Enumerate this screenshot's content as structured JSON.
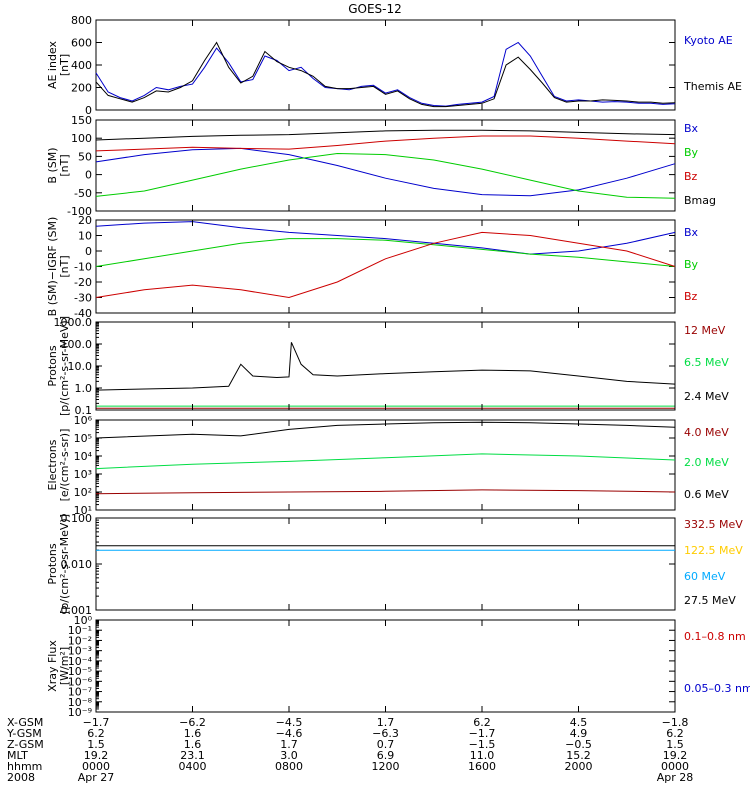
{
  "title": "GOES-12",
  "chart_data": [
    {
      "type": "line",
      "ylabel": [
        "AE index",
        "[nT]"
      ],
      "ylim": [
        0,
        800
      ],
      "yscale": "linear",
      "yticks": [
        0,
        200,
        400,
        600,
        800
      ],
      "series": [
        {
          "name": "Kyoto AE",
          "color": "#0000cc",
          "x": [
            0,
            0.5,
            1,
            1.5,
            2,
            2.5,
            3,
            3.5,
            4,
            4.5,
            5,
            5.5,
            6,
            6.5,
            7,
            7.5,
            8,
            8.5,
            9,
            9.5,
            10,
            10.5,
            11,
            11.5,
            12,
            12.5,
            13,
            13.5,
            14,
            14.5,
            15,
            15.5,
            16,
            16.5,
            17,
            17.5,
            18,
            18.5,
            19,
            19.5,
            20,
            20.5,
            21,
            21.5,
            22,
            22.5,
            23,
            23.5,
            24
          ],
          "values": [
            330,
            160,
            110,
            80,
            130,
            200,
            180,
            210,
            230,
            380,
            550,
            420,
            250,
            270,
            480,
            440,
            350,
            380,
            280,
            200,
            190,
            180,
            210,
            220,
            150,
            180,
            110,
            60,
            40,
            35,
            50,
            60,
            70,
            120,
            540,
            600,
            480,
            300,
            120,
            80,
            90,
            80,
            70,
            75,
            70,
            60,
            60,
            50,
            55
          ]
        },
        {
          "name": "Themis AE",
          "color": "#000000",
          "x": [
            0,
            0.5,
            1,
            1.5,
            2,
            2.5,
            3,
            3.5,
            4,
            4.5,
            5,
            5.5,
            6,
            6.5,
            7,
            7.5,
            8,
            8.5,
            9,
            9.5,
            10,
            10.5,
            11,
            11.5,
            12,
            12.5,
            13,
            13.5,
            14,
            14.5,
            15,
            15.5,
            16,
            16.5,
            17,
            17.5,
            18,
            18.5,
            19,
            19.5,
            20,
            20.5,
            21,
            21.5,
            22,
            22.5,
            23,
            23.5,
            24
          ],
          "values": [
            250,
            130,
            100,
            70,
            110,
            170,
            160,
            200,
            260,
            440,
            600,
            380,
            240,
            300,
            520,
            430,
            380,
            350,
            300,
            210,
            190,
            190,
            200,
            210,
            140,
            170,
            100,
            50,
            30,
            30,
            40,
            50,
            60,
            100,
            400,
            470,
            360,
            240,
            110,
            70,
            80,
            80,
            90,
            85,
            80,
            70,
            70,
            60,
            65
          ]
        }
      ]
    },
    {
      "type": "line",
      "ylabel": [
        "B (SM)",
        "[nT]"
      ],
      "ylim": [
        -100,
        150
      ],
      "yscale": "linear",
      "yticks": [
        -100,
        -50,
        0,
        50,
        100,
        150
      ],
      "series": [
        {
          "name": "Bx",
          "color": "#0000cc",
          "x": [
            0,
            2,
            4,
            6,
            8,
            10,
            12,
            14,
            16,
            18,
            20,
            22,
            24
          ],
          "values": [
            35,
            55,
            68,
            72,
            55,
            25,
            -10,
            -38,
            -55,
            -58,
            -42,
            -10,
            30
          ]
        },
        {
          "name": "By",
          "color": "#00cc00",
          "x": [
            0,
            2,
            4,
            6,
            8,
            10,
            12,
            14,
            16,
            18,
            20,
            22,
            24
          ],
          "values": [
            -60,
            -45,
            -15,
            15,
            40,
            58,
            55,
            40,
            15,
            -15,
            -45,
            -62,
            -65
          ]
        },
        {
          "name": "Bz",
          "color": "#cc0000",
          "x": [
            0,
            2,
            4,
            6,
            8,
            10,
            12,
            14,
            16,
            18,
            20,
            22,
            24
          ],
          "values": [
            65,
            70,
            75,
            72,
            70,
            80,
            92,
            100,
            106,
            106,
            100,
            92,
            85
          ]
        },
        {
          "name": "Bmag",
          "color": "#000000",
          "x": [
            0,
            2,
            4,
            6,
            8,
            10,
            12,
            14,
            16,
            18,
            20,
            22,
            24
          ],
          "values": [
            95,
            100,
            105,
            108,
            110,
            115,
            120,
            122,
            122,
            120,
            116,
            112,
            110
          ]
        }
      ]
    },
    {
      "type": "line",
      "ylabel": [
        "B (SM)−IGRF (SM)",
        "[nT]"
      ],
      "ylim": [
        -40,
        20
      ],
      "yscale": "linear",
      "yticks": [
        -40,
        -30,
        -20,
        -10,
        0,
        10,
        20
      ],
      "series": [
        {
          "name": "Bx",
          "color": "#0000cc",
          "x": [
            0,
            2,
            4,
            6,
            8,
            10,
            12,
            14,
            16,
            18,
            20,
            22,
            24
          ],
          "values": [
            16,
            18,
            19,
            15,
            12,
            10,
            8,
            5,
            2,
            -2,
            0,
            5,
            12
          ]
        },
        {
          "name": "By",
          "color": "#00cc00",
          "x": [
            0,
            2,
            4,
            6,
            8,
            10,
            12,
            14,
            16,
            18,
            20,
            22,
            24
          ],
          "values": [
            -10,
            -5,
            0,
            5,
            8,
            8,
            7,
            4,
            1,
            -2,
            -4,
            -7,
            -10
          ]
        },
        {
          "name": "Bz",
          "color": "#cc0000",
          "x": [
            0,
            2,
            4,
            6,
            8,
            10,
            12,
            14,
            16,
            18,
            20,
            22,
            24
          ],
          "values": [
            -30,
            -25,
            -22,
            -25,
            -30,
            -20,
            -5,
            5,
            12,
            10,
            5,
            0,
            -10
          ]
        }
      ]
    },
    {
      "type": "line",
      "ylabel": [
        "Protons",
        "[p/(cm²-s-sr-MeV)]"
      ],
      "ylim": [
        0.1,
        1000
      ],
      "yscale": "log",
      "ytick_labels": [
        "0.1",
        "1.0",
        "10.0",
        "100.0",
        "1000.0"
      ],
      "series": [
        {
          "name": "12 MeV",
          "color": "#990000",
          "x": [
            0,
            6,
            12,
            18,
            24
          ],
          "values": [
            0.12,
            0.12,
            0.12,
            0.12,
            0.12
          ]
        },
        {
          "name": "6.5 MeV",
          "color": "#00dd44",
          "x": [
            0,
            6,
            12,
            18,
            24
          ],
          "values": [
            0.15,
            0.15,
            0.15,
            0.15,
            0.15
          ]
        },
        {
          "name": "2.4 MeV",
          "color": "#000000",
          "x": [
            0,
            2,
            4,
            5.5,
            6,
            6.5,
            7.5,
            8,
            8.1,
            8.5,
            9,
            10,
            12,
            14,
            16,
            18,
            20,
            22,
            24
          ],
          "values": [
            0.8,
            0.9,
            1.0,
            1.2,
            12,
            3.5,
            3.0,
            3.2,
            120,
            12,
            4,
            3.5,
            4.5,
            5.5,
            6.5,
            6.0,
            3.5,
            2.0,
            1.5
          ]
        }
      ]
    },
    {
      "type": "line",
      "ylabel": [
        "Electrons",
        "[e/(cm²-s-sr)]"
      ],
      "ylim": [
        10,
        1000000
      ],
      "yscale": "log",
      "ytick_labels": [
        "10¹",
        "10²",
        "10³",
        "10⁴",
        "10⁵",
        "10⁶"
      ],
      "series": [
        {
          "name": "4.0 MeV",
          "color": "#990000",
          "x": [
            0,
            4,
            8,
            12,
            16,
            20,
            24
          ],
          "values": [
            80,
            90,
            100,
            110,
            130,
            120,
            100
          ]
        },
        {
          "name": "2.0 MeV",
          "color": "#00dd44",
          "x": [
            0,
            4,
            8,
            12,
            16,
            20,
            24
          ],
          "values": [
            2000,
            3500,
            5000,
            8000,
            13000,
            10000,
            6000
          ]
        },
        {
          "name": "0.6 MeV",
          "color": "#000000",
          "x": [
            0,
            4,
            6,
            8,
            10,
            12,
            14,
            16,
            18,
            20,
            22,
            24
          ],
          "values": [
            100000,
            160000,
            130000,
            300000,
            500000,
            600000,
            700000,
            750000,
            700000,
            600000,
            500000,
            400000
          ]
        }
      ]
    },
    {
      "type": "line",
      "ylabel": [
        "Protons",
        "[p/(cm²-s-sr-MeV)]"
      ],
      "ylim": [
        0.001,
        0.1
      ],
      "yscale": "log",
      "ytick_labels": [
        "0.001",
        "0.010",
        "0.100"
      ],
      "series": [
        {
          "name": "332.5 MeV",
          "color": "#990000",
          "x": [],
          "values": []
        },
        {
          "name": "122.5 MeV",
          "color": "#ffcc00",
          "x": [],
          "values": []
        },
        {
          "name": "60 MeV",
          "color": "#00aaff",
          "x": [
            0,
            24
          ],
          "values": [
            0.02,
            0.02
          ]
        },
        {
          "name": "27.5 MeV",
          "color": "#000000",
          "x": [
            0,
            24
          ],
          "values": [
            0.025,
            0.025
          ]
        }
      ]
    },
    {
      "type": "line",
      "ylabel": [
        "Xray Flux",
        "[W/m²]"
      ],
      "ylim": [
        1e-09,
        1
      ],
      "yscale": "log",
      "ytick_labels": [
        "10⁻⁹",
        "10⁻⁸",
        "10⁻⁷",
        "10⁻⁶",
        "10⁻⁵",
        "10⁻⁴",
        "10⁻³",
        "10⁻²",
        "10⁻¹",
        "10⁰"
      ],
      "series": [
        {
          "name": "0.1–0.8 nm",
          "color": "#cc0000",
          "x": [],
          "values": []
        },
        {
          "name": "0.05–0.3 nm",
          "color": "#0000cc",
          "x": [],
          "values": []
        }
      ]
    }
  ],
  "x_axis": {
    "range_hours": [
      0,
      24
    ],
    "ticks_hours": [
      0,
      4,
      8,
      12,
      16,
      20,
      24
    ],
    "row_labels": [
      "X-GSM",
      "Y-GSM",
      "Z-GSM",
      "MLT",
      "hhmm",
      "2008"
    ],
    "rows": [
      [
        "−1.7",
        "−6.2",
        "−4.5",
        "1.7",
        "6.2",
        "4.5",
        "−1.8"
      ],
      [
        "6.2",
        "1.6",
        "−4.6",
        "−6.3",
        "−1.7",
        "4.9",
        "6.2"
      ],
      [
        "1.5",
        "1.6",
        "1.7",
        "0.7",
        "−1.5",
        "−0.5",
        "1.5"
      ],
      [
        "19.2",
        "23.1",
        "3.0",
        "6.9",
        "11.0",
        "15.2",
        "19.2"
      ],
      [
        "0000",
        "0400",
        "0800",
        "1200",
        "1600",
        "2000",
        "0000"
      ],
      [
        "Apr 27",
        "",
        "",
        "",
        "",
        "",
        "Apr 28"
      ]
    ]
  }
}
